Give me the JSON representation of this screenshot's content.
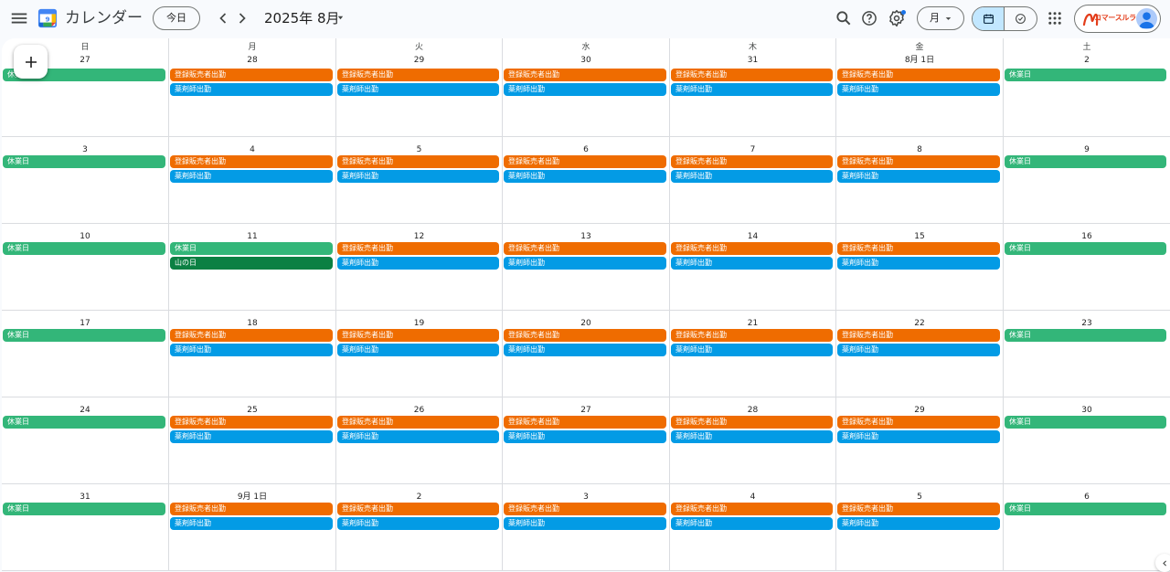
{
  "header": {
    "app_title": "カレンダー",
    "today_label": "今日",
    "month_label": "2025年 8月",
    "view_label": "月",
    "brand_text": "コマースルライフ"
  },
  "weekdays": [
    "日",
    "月",
    "火",
    "水",
    "木",
    "金",
    "土"
  ],
  "weeks": [
    [
      {
        "label": "27",
        "events": [
          {
            "title": "休業日",
            "type": "closed"
          }
        ]
      },
      {
        "label": "28",
        "events": [
          {
            "title": "登録販売者出勤",
            "type": "seller"
          },
          {
            "title": "薬剤師出勤",
            "type": "pharmacist"
          }
        ]
      },
      {
        "label": "29",
        "events": [
          {
            "title": "登録販売者出勤",
            "type": "seller"
          },
          {
            "title": "薬剤師出勤",
            "type": "pharmacist"
          }
        ]
      },
      {
        "label": "30",
        "events": [
          {
            "title": "登録販売者出勤",
            "type": "seller"
          },
          {
            "title": "薬剤師出勤",
            "type": "pharmacist"
          }
        ]
      },
      {
        "label": "31",
        "events": [
          {
            "title": "登録販売者出勤",
            "type": "seller"
          },
          {
            "title": "薬剤師出勤",
            "type": "pharmacist"
          }
        ]
      },
      {
        "label": "8月 1日",
        "events": [
          {
            "title": "登録販売者出勤",
            "type": "seller"
          },
          {
            "title": "薬剤師出勤",
            "type": "pharmacist"
          }
        ]
      },
      {
        "label": "2",
        "events": [
          {
            "title": "休業日",
            "type": "closed"
          }
        ]
      }
    ],
    [
      {
        "label": "3",
        "events": [
          {
            "title": "休業日",
            "type": "closed"
          }
        ]
      },
      {
        "label": "4",
        "events": [
          {
            "title": "登録販売者出勤",
            "type": "seller"
          },
          {
            "title": "薬剤師出勤",
            "type": "pharmacist"
          }
        ]
      },
      {
        "label": "5",
        "events": [
          {
            "title": "登録販売者出勤",
            "type": "seller"
          },
          {
            "title": "薬剤師出勤",
            "type": "pharmacist"
          }
        ]
      },
      {
        "label": "6",
        "events": [
          {
            "title": "登録販売者出勤",
            "type": "seller"
          },
          {
            "title": "薬剤師出勤",
            "type": "pharmacist"
          }
        ]
      },
      {
        "label": "7",
        "events": [
          {
            "title": "登録販売者出勤",
            "type": "seller"
          },
          {
            "title": "薬剤師出勤",
            "type": "pharmacist"
          }
        ]
      },
      {
        "label": "8",
        "events": [
          {
            "title": "登録販売者出勤",
            "type": "seller"
          },
          {
            "title": "薬剤師出勤",
            "type": "pharmacist"
          }
        ]
      },
      {
        "label": "9",
        "events": [
          {
            "title": "休業日",
            "type": "closed"
          }
        ]
      }
    ],
    [
      {
        "label": "10",
        "events": [
          {
            "title": "休業日",
            "type": "closed"
          }
        ]
      },
      {
        "label": "11",
        "events": [
          {
            "title": "休業日",
            "type": "closed"
          },
          {
            "title": "山の日",
            "type": "holiday"
          }
        ]
      },
      {
        "label": "12",
        "events": [
          {
            "title": "登録販売者出勤",
            "type": "seller"
          },
          {
            "title": "薬剤師出勤",
            "type": "pharmacist"
          }
        ]
      },
      {
        "label": "13",
        "events": [
          {
            "title": "登録販売者出勤",
            "type": "seller"
          },
          {
            "title": "薬剤師出勤",
            "type": "pharmacist"
          }
        ]
      },
      {
        "label": "14",
        "events": [
          {
            "title": "登録販売者出勤",
            "type": "seller"
          },
          {
            "title": "薬剤師出勤",
            "type": "pharmacist"
          }
        ]
      },
      {
        "label": "15",
        "events": [
          {
            "title": "登録販売者出勤",
            "type": "seller"
          },
          {
            "title": "薬剤師出勤",
            "type": "pharmacist"
          }
        ]
      },
      {
        "label": "16",
        "events": [
          {
            "title": "休業日",
            "type": "closed"
          }
        ]
      }
    ],
    [
      {
        "label": "17",
        "events": [
          {
            "title": "休業日",
            "type": "closed"
          }
        ]
      },
      {
        "label": "18",
        "events": [
          {
            "title": "登録販売者出勤",
            "type": "seller"
          },
          {
            "title": "薬剤師出勤",
            "type": "pharmacist"
          }
        ]
      },
      {
        "label": "19",
        "events": [
          {
            "title": "登録販売者出勤",
            "type": "seller"
          },
          {
            "title": "薬剤師出勤",
            "type": "pharmacist"
          }
        ]
      },
      {
        "label": "20",
        "events": [
          {
            "title": "登録販売者出勤",
            "type": "seller"
          },
          {
            "title": "薬剤師出勤",
            "type": "pharmacist"
          }
        ]
      },
      {
        "label": "21",
        "events": [
          {
            "title": "登録販売者出勤",
            "type": "seller"
          },
          {
            "title": "薬剤師出勤",
            "type": "pharmacist"
          }
        ]
      },
      {
        "label": "22",
        "events": [
          {
            "title": "登録販売者出勤",
            "type": "seller"
          },
          {
            "title": "薬剤師出勤",
            "type": "pharmacist"
          }
        ]
      },
      {
        "label": "23",
        "events": [
          {
            "title": "休業日",
            "type": "closed"
          }
        ]
      }
    ],
    [
      {
        "label": "24",
        "events": [
          {
            "title": "休業日",
            "type": "closed"
          }
        ]
      },
      {
        "label": "25",
        "events": [
          {
            "title": "登録販売者出勤",
            "type": "seller"
          },
          {
            "title": "薬剤師出勤",
            "type": "pharmacist"
          }
        ]
      },
      {
        "label": "26",
        "events": [
          {
            "title": "登録販売者出勤",
            "type": "seller"
          },
          {
            "title": "薬剤師出勤",
            "type": "pharmacist"
          }
        ]
      },
      {
        "label": "27",
        "events": [
          {
            "title": "登録販売者出勤",
            "type": "seller"
          },
          {
            "title": "薬剤師出勤",
            "type": "pharmacist"
          }
        ]
      },
      {
        "label": "28",
        "events": [
          {
            "title": "登録販売者出勤",
            "type": "seller"
          },
          {
            "title": "薬剤師出勤",
            "type": "pharmacist"
          }
        ]
      },
      {
        "label": "29",
        "events": [
          {
            "title": "登録販売者出勤",
            "type": "seller"
          },
          {
            "title": "薬剤師出勤",
            "type": "pharmacist"
          }
        ]
      },
      {
        "label": "30",
        "events": [
          {
            "title": "休業日",
            "type": "closed"
          }
        ]
      }
    ],
    [
      {
        "label": "31",
        "events": [
          {
            "title": "休業日",
            "type": "closed"
          }
        ]
      },
      {
        "label": "9月 1日",
        "events": [
          {
            "title": "登録販売者出勤",
            "type": "seller"
          },
          {
            "title": "薬剤師出勤",
            "type": "pharmacist"
          }
        ]
      },
      {
        "label": "2",
        "events": [
          {
            "title": "登録販売者出勤",
            "type": "seller"
          },
          {
            "title": "薬剤師出勤",
            "type": "pharmacist"
          }
        ]
      },
      {
        "label": "3",
        "events": [
          {
            "title": "登録販売者出勤",
            "type": "seller"
          },
          {
            "title": "薬剤師出勤",
            "type": "pharmacist"
          }
        ]
      },
      {
        "label": "4",
        "events": [
          {
            "title": "登録販売者出勤",
            "type": "seller"
          },
          {
            "title": "薬剤師出勤",
            "type": "pharmacist"
          }
        ]
      },
      {
        "label": "5",
        "events": [
          {
            "title": "登録販売者出勤",
            "type": "seller"
          },
          {
            "title": "薬剤師出勤",
            "type": "pharmacist"
          }
        ]
      },
      {
        "label": "6",
        "events": [
          {
            "title": "休業日",
            "type": "closed"
          }
        ]
      }
    ]
  ],
  "event_colors": {
    "closed": "#33b679",
    "seller": "#ef6c00",
    "pharmacist": "#039be5",
    "holiday": "#0b8043"
  },
  "icons": {
    "menu": "hamburger-menu-icon",
    "prev": "chevron-left-icon",
    "next": "chevron-right-icon",
    "search": "search-icon",
    "help": "help-icon",
    "settings": "gear-icon",
    "apps": "apps-grid-icon",
    "create": "plus-icon"
  }
}
